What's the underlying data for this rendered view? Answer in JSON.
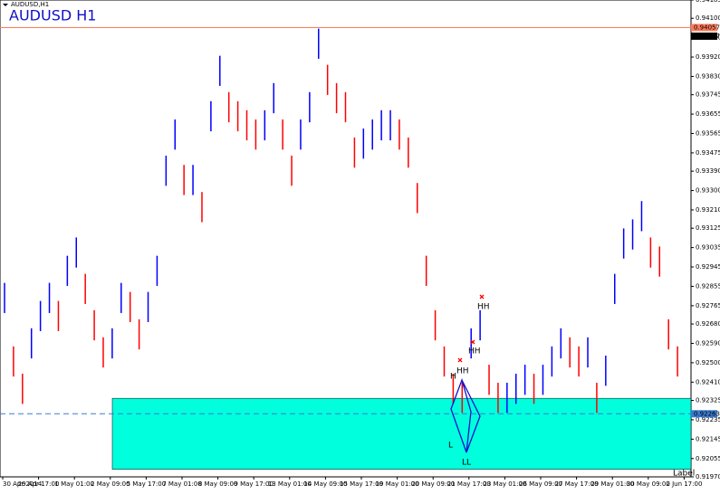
{
  "chart_data": {
    "type": "hlbar",
    "symbol_label": "AUDUSD,H1",
    "title": "AUDUSD H1",
    "corner_label": "Label",
    "colors": {
      "up": "#0000ff",
      "down": "#ff0000",
      "zone": "#00ffdd",
      "level": "#ff7a5a",
      "dashed": "#3a7ad0"
    },
    "ylim": [
      0.9197,
      0.94185
    ],
    "yticks": [
      0.94185,
      {
        "value": 0.941,
        "label": "0.94100"
      },
      {
        "value": 0.9401,
        "label": "0.94010"
      },
      {
        "value": 0.9392,
        "label": "0.93920"
      },
      {
        "value": 0.9383,
        "label": "0.93830"
      },
      0.93745,
      0.93655,
      0.93565,
      0.93475,
      {
        "value": 0.9339,
        "label": "0.93390"
      },
      {
        "value": 0.933,
        "label": "0.93300"
      },
      {
        "value": 0.9321,
        "label": "0.93210"
      },
      0.93125,
      0.93035,
      0.92945,
      0.92855,
      0.92765,
      {
        "value": 0.9268,
        "label": "0.92680"
      },
      {
        "value": 0.9259,
        "label": "0.92590"
      },
      {
        "value": 0.925,
        "label": "0.92500"
      },
      {
        "value": 0.9241,
        "label": "0.92410"
      },
      0.92325,
      0.92235,
      0.92145,
      0.92055,
      {
        "value": 0.9197,
        "label": "0.91970"
      }
    ],
    "xlabels": [
      "30 Apr 2014",
      "29 Apr 17:00",
      "1 May 01:00",
      "2 May 09:00",
      "5 May 17:00",
      "7 May 01:00",
      "8 May 09:00",
      "9 May 17:00",
      "13 May 01:00",
      "14 May 09:00",
      "15 May 17:00",
      "19 May 01:00",
      "20 May 09:00",
      "21 May 17:00",
      "23 May 01:00",
      "26 May 09:00",
      "27 May 17:00",
      "29 May 01:00",
      "30 May 09:00",
      "2 Jun 17:00"
    ],
    "high": [
      0.92871,
      0.92576,
      0.92449,
      0.9266,
      0.92787,
      0.92871,
      0.92787,
      0.92997,
      0.93082,
      0.92913,
      0.92744,
      0.92618,
      0.9266,
      0.92871,
      0.92829,
      0.92702,
      0.92829,
      0.92997,
      0.93462,
      0.9363,
      0.93419,
      0.93419,
      0.93293,
      0.93715,
      0.93926,
      0.93757,
      0.93715,
      0.93673,
      0.9363,
      0.93673,
      0.93799,
      0.9363,
      0.93462,
      0.9363,
      0.93757,
      0.94052,
      0.93884,
      0.93799,
      0.93757,
      0.93546,
      0.93588,
      0.9363,
      0.93673,
      0.93673,
      0.9363,
      0.93546,
      0.93335,
      0.92997,
      0.92744,
      0.92576,
      0.92449,
      0.92407,
      0.9266,
      0.92744,
      0.92491,
      0.92407,
      0.92407,
      0.92449,
      0.92491,
      0.92449,
      0.92491,
      0.92576,
      0.9266,
      0.92618,
      0.92576,
      0.92618,
      0.92407,
      0.92533,
      0.92913,
      0.93124,
      0.93166,
      0.93251,
      0.93082,
      0.9304,
      0.92702,
      0.92576
    ],
    "low": [
      0.92731,
      0.92436,
      0.92309,
      0.9252,
      0.92647,
      0.92731,
      0.92647,
      0.92857,
      0.92942,
      0.92773,
      0.92604,
      0.92478,
      0.9252,
      0.92731,
      0.92689,
      0.92562,
      0.92689,
      0.92857,
      0.93322,
      0.9349,
      0.93279,
      0.93279,
      0.93153,
      0.93575,
      0.93786,
      0.93617,
      0.93575,
      0.93533,
      0.9349,
      0.93533,
      0.93659,
      0.9349,
      0.93322,
      0.9349,
      0.93617,
      0.93912,
      0.93744,
      0.93659,
      0.93617,
      0.93406,
      0.93448,
      0.9349,
      0.93533,
      0.93533,
      0.9349,
      0.93406,
      0.93195,
      0.92857,
      0.92604,
      0.92436,
      0.92309,
      0.92267,
      0.9252,
      0.92604,
      0.92351,
      0.92267,
      0.92267,
      0.92309,
      0.92351,
      0.92309,
      0.92351,
      0.92436,
      0.9252,
      0.92478,
      0.92436,
      0.92478,
      0.92267,
      0.92393,
      0.92773,
      0.92984,
      0.93026,
      0.93111,
      0.92942,
      0.929,
      0.92562,
      0.92436
    ],
    "zone": [
      0.92005,
      0.92335
    ],
    "level": {
      "value": 0.94057,
      "label": "0.94057"
    },
    "bid": {
      "value": 0.94017,
      "label": "0.94017"
    },
    "dashed": {
      "value": 0.92263,
      "label": "0.92263"
    },
    "annotations": [
      "H",
      "HH",
      "HH",
      "HH",
      "L",
      "LL"
    ]
  }
}
